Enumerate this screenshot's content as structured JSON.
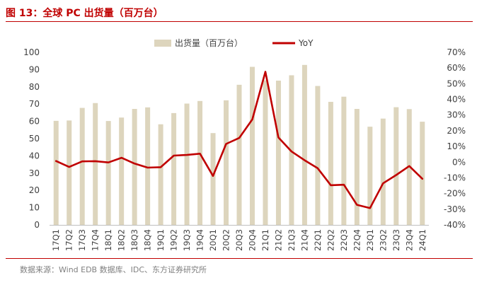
{
  "figure_title": "图 13：全球 PC 出货量（百万台）",
  "source_note": "数据来源：Wind EDB 数据库、IDC、东方证券研究所",
  "colors": {
    "bar": "#ddd5bd",
    "line": "#c00000",
    "title": "#c00000",
    "axis": "#bfbfbf"
  },
  "chart_data": {
    "type": "bar",
    "categories": [
      "17Q1",
      "17Q2",
      "17Q3",
      "17Q4",
      "18Q1",
      "18Q2",
      "18Q3",
      "18Q4",
      "19Q1",
      "19Q2",
      "19Q3",
      "19Q4",
      "20Q1",
      "20Q2",
      "20Q3",
      "20Q4",
      "21Q1",
      "21Q2",
      "21Q3",
      "21Q4",
      "22Q1",
      "22Q2",
      "22Q3",
      "22Q4",
      "23Q1",
      "23Q2",
      "23Q3",
      "23Q4",
      "24Q1"
    ],
    "series": [
      {
        "name": "出货量（百万台）",
        "type": "bar",
        "axis": "left",
        "values": [
          60.3,
          60.5,
          67.8,
          70.6,
          60.2,
          62.2,
          67.2,
          68.1,
          58.3,
          64.8,
          70.3,
          71.8,
          53.2,
          72.2,
          81.2,
          91.6,
          83.8,
          83.6,
          86.7,
          92.7,
          80.5,
          71.3,
          74.3,
          67.2,
          56.9,
          61.6,
          68.2,
          67.1,
          59.8
        ]
      },
      {
        "name": "YoY",
        "type": "line",
        "axis": "right",
        "values": [
          0.7,
          -3.1,
          0.5,
          0.6,
          -0.2,
          2.8,
          -0.9,
          -3.5,
          -3.2,
          4.2,
          4.6,
          5.4,
          -8.8,
          11.6,
          15.4,
          27.2,
          57.6,
          15.7,
          6.8,
          1.2,
          -3.9,
          -14.7,
          -14.4,
          -27.2,
          -29.3,
          -13.5,
          -8.2,
          -2.5,
          -10.6
        ]
      }
    ],
    "ylim": [
      0,
      100
    ],
    "y_ticks": [
      "0",
      "10",
      "20",
      "30",
      "40",
      "50",
      "60",
      "70",
      "80",
      "90",
      "100"
    ],
    "y2lim": [
      -40,
      70
    ],
    "y2_ticks": [
      "-40%",
      "-30%",
      "-20%",
      "-10%",
      "0%",
      "10%",
      "20%",
      "30%",
      "40%",
      "50%",
      "60%",
      "70%"
    ],
    "legend_position": "top-center",
    "grid": false
  }
}
